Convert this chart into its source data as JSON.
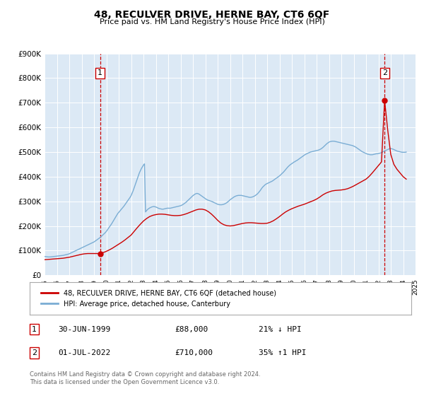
{
  "title": "48, RECULVER DRIVE, HERNE BAY, CT6 6QF",
  "subtitle": "Price paid vs. HM Land Registry's House Price Index (HPI)",
  "plot_bg_color": "#dce9f5",
  "red_line_color": "#cc0000",
  "blue_line_color": "#7aadd4",
  "ylim": [
    0,
    900000
  ],
  "yticks": [
    0,
    100000,
    200000,
    300000,
    400000,
    500000,
    600000,
    700000,
    800000,
    900000
  ],
  "ytick_labels": [
    "£0",
    "£100K",
    "£200K",
    "£300K",
    "£400K",
    "£500K",
    "£600K",
    "£700K",
    "£800K",
    "£900K"
  ],
  "point1": {
    "year": 1999.5,
    "price": 88000,
    "label": "1",
    "date": "30-JUN-1999",
    "amount": "£88,000",
    "pct": "21% ↓ HPI"
  },
  "point2": {
    "year": 2022.5,
    "price": 710000,
    "label": "2",
    "date": "01-JUL-2022",
    "amount": "£710,000",
    "pct": "35% ↑1 HPI"
  },
  "legend_label_red": "48, RECULVER DRIVE, HERNE BAY, CT6 6QF (detached house)",
  "legend_label_blue": "HPI: Average price, detached house, Canterbury",
  "footer": "Contains HM Land Registry data © Crown copyright and database right 2024.\nThis data is licensed under the Open Government Licence v3.0.",
  "hpi_data": {
    "years": [
      1995.0,
      1995.083,
      1995.167,
      1995.25,
      1995.333,
      1995.417,
      1995.5,
      1995.583,
      1995.667,
      1995.75,
      1995.833,
      1995.917,
      1996.0,
      1996.083,
      1996.167,
      1996.25,
      1996.333,
      1996.417,
      1996.5,
      1996.583,
      1996.667,
      1996.75,
      1996.833,
      1996.917,
      1997.0,
      1997.083,
      1997.167,
      1997.25,
      1997.333,
      1997.417,
      1997.5,
      1997.583,
      1997.667,
      1997.75,
      1997.833,
      1997.917,
      1998.0,
      1998.083,
      1998.167,
      1998.25,
      1998.333,
      1998.417,
      1998.5,
      1998.583,
      1998.667,
      1998.75,
      1998.833,
      1998.917,
      1999.0,
      1999.083,
      1999.167,
      1999.25,
      1999.333,
      1999.417,
      1999.5,
      1999.583,
      1999.667,
      1999.75,
      1999.833,
      1999.917,
      2000.0,
      2000.083,
      2000.167,
      2000.25,
      2000.333,
      2000.417,
      2000.5,
      2000.583,
      2000.667,
      2000.75,
      2000.833,
      2000.917,
      2001.0,
      2001.083,
      2001.167,
      2001.25,
      2001.333,
      2001.417,
      2001.5,
      2001.583,
      2001.667,
      2001.75,
      2001.833,
      2001.917,
      2002.0,
      2002.083,
      2002.167,
      2002.25,
      2002.333,
      2002.417,
      2002.5,
      2002.583,
      2002.667,
      2002.75,
      2002.833,
      2002.917,
      2003.0,
      2003.083,
      2003.167,
      2003.25,
      2003.333,
      2003.417,
      2003.5,
      2003.583,
      2003.667,
      2003.75,
      2003.833,
      2003.917,
      2004.0,
      2004.083,
      2004.167,
      2004.25,
      2004.333,
      2004.417,
      2004.5,
      2004.583,
      2004.667,
      2004.75,
      2004.833,
      2004.917,
      2005.0,
      2005.083,
      2005.167,
      2005.25,
      2005.333,
      2005.417,
      2005.5,
      2005.583,
      2005.667,
      2005.75,
      2005.833,
      2005.917,
      2006.0,
      2006.083,
      2006.167,
      2006.25,
      2006.333,
      2006.417,
      2006.5,
      2006.583,
      2006.667,
      2006.75,
      2006.833,
      2006.917,
      2007.0,
      2007.083,
      2007.167,
      2007.25,
      2007.333,
      2007.417,
      2007.5,
      2007.583,
      2007.667,
      2007.75,
      2007.833,
      2007.917,
      2008.0,
      2008.083,
      2008.167,
      2008.25,
      2008.333,
      2008.417,
      2008.5,
      2008.583,
      2008.667,
      2008.75,
      2008.833,
      2008.917,
      2009.0,
      2009.083,
      2009.167,
      2009.25,
      2009.333,
      2009.417,
      2009.5,
      2009.583,
      2009.667,
      2009.75,
      2009.833,
      2009.917,
      2010.0,
      2010.083,
      2010.167,
      2010.25,
      2010.333,
      2010.417,
      2010.5,
      2010.583,
      2010.667,
      2010.75,
      2010.833,
      2010.917,
      2011.0,
      2011.083,
      2011.167,
      2011.25,
      2011.333,
      2011.417,
      2011.5,
      2011.583,
      2011.667,
      2011.75,
      2011.833,
      2011.917,
      2012.0,
      2012.083,
      2012.167,
      2012.25,
      2012.333,
      2012.417,
      2012.5,
      2012.583,
      2012.667,
      2012.75,
      2012.833,
      2012.917,
      2013.0,
      2013.083,
      2013.167,
      2013.25,
      2013.333,
      2013.417,
      2013.5,
      2013.583,
      2013.667,
      2013.75,
      2013.833,
      2013.917,
      2014.0,
      2014.083,
      2014.167,
      2014.25,
      2014.333,
      2014.417,
      2014.5,
      2014.583,
      2014.667,
      2014.75,
      2014.833,
      2014.917,
      2015.0,
      2015.083,
      2015.167,
      2015.25,
      2015.333,
      2015.417,
      2015.5,
      2015.583,
      2015.667,
      2015.75,
      2015.833,
      2015.917,
      2016.0,
      2016.083,
      2016.167,
      2016.25,
      2016.333,
      2016.417,
      2016.5,
      2016.583,
      2016.667,
      2016.75,
      2016.833,
      2016.917,
      2017.0,
      2017.083,
      2017.167,
      2017.25,
      2017.333,
      2017.417,
      2017.5,
      2017.583,
      2017.667,
      2017.75,
      2017.833,
      2017.917,
      2018.0,
      2018.083,
      2018.167,
      2018.25,
      2018.333,
      2018.417,
      2018.5,
      2018.583,
      2018.667,
      2018.75,
      2018.833,
      2018.917,
      2019.0,
      2019.083,
      2019.167,
      2019.25,
      2019.333,
      2019.417,
      2019.5,
      2019.583,
      2019.667,
      2019.75,
      2019.833,
      2019.917,
      2020.0,
      2020.083,
      2020.167,
      2020.25,
      2020.333,
      2020.417,
      2020.5,
      2020.583,
      2020.667,
      2020.75,
      2020.833,
      2020.917,
      2021.0,
      2021.083,
      2021.167,
      2021.25,
      2021.333,
      2021.417,
      2021.5,
      2021.583,
      2021.667,
      2021.75,
      2021.833,
      2021.917,
      2022.0,
      2022.083,
      2022.167,
      2022.25,
      2022.333,
      2022.417,
      2022.5,
      2022.583,
      2022.667,
      2022.75,
      2022.833,
      2022.917,
      2023.0,
      2023.083,
      2023.167,
      2023.25,
      2023.333,
      2023.417,
      2023.5,
      2023.583,
      2023.667,
      2023.75,
      2023.833,
      2023.917,
      2024.0,
      2024.083,
      2024.167,
      2024.25
    ],
    "values": [
      76000,
      75500,
      75000,
      74500,
      74000,
      74200,
      74500,
      75000,
      75500,
      76000,
      76500,
      77000,
      77500,
      78000,
      78500,
      79000,
      79500,
      80000,
      80500,
      81500,
      82500,
      83500,
      84500,
      85500,
      87000,
      89000,
      91000,
      93000,
      95000,
      97000,
      99000,
      101000,
      103000,
      105000,
      107000,
      109000,
      111000,
      113000,
      115000,
      117000,
      119000,
      121000,
      123000,
      125000,
      127000,
      129000,
      131000,
      133000,
      135000,
      138000,
      141000,
      144000,
      147000,
      150000,
      153000,
      157000,
      161000,
      165000,
      169000,
      173000,
      178000,
      184000,
      190000,
      196000,
      202000,
      208000,
      215000,
      222000,
      229000,
      236000,
      243000,
      250000,
      255000,
      260000,
      265000,
      270000,
      275000,
      280000,
      286000,
      292000,
      298000,
      304000,
      310000,
      316000,
      323000,
      333000,
      343000,
      355000,
      367000,
      379000,
      391000,
      403000,
      415000,
      424000,
      433000,
      440000,
      447000,
      452000,
      257000,
      262000,
      267000,
      270000,
      273000,
      275000,
      277000,
      278000,
      279000,
      278000,
      277000,
      275000,
      273000,
      271000,
      270000,
      269000,
      268000,
      268000,
      269000,
      270000,
      271000,
      272000,
      272000,
      272000,
      272000,
      273000,
      274000,
      275000,
      276000,
      277000,
      278000,
      279000,
      280000,
      281000,
      282000,
      284000,
      286000,
      289000,
      292000,
      295000,
      299000,
      303000,
      307000,
      311000,
      315000,
      319000,
      323000,
      326000,
      329000,
      331000,
      332000,
      331000,
      329000,
      326000,
      323000,
      320000,
      317000,
      314000,
      311000,
      308000,
      306000,
      304000,
      303000,
      301000,
      300000,
      298000,
      296000,
      294000,
      292000,
      290000,
      288000,
      287000,
      286000,
      286000,
      286000,
      287000,
      288000,
      290000,
      292000,
      295000,
      298000,
      302000,
      306000,
      309000,
      312000,
      315000,
      318000,
      320000,
      322000,
      323000,
      324000,
      324000,
      324000,
      324000,
      323000,
      322000,
      321000,
      320000,
      319000,
      318000,
      317000,
      316000,
      316000,
      317000,
      318000,
      320000,
      322000,
      325000,
      328000,
      332000,
      337000,
      342000,
      348000,
      354000,
      359000,
      363000,
      367000,
      370000,
      372000,
      374000,
      376000,
      378000,
      380000,
      382000,
      385000,
      388000,
      391000,
      394000,
      397000,
      400000,
      403000,
      407000,
      411000,
      415000,
      419000,
      424000,
      429000,
      434000,
      439000,
      443000,
      447000,
      450000,
      453000,
      456000,
      459000,
      461000,
      464000,
      466000,
      469000,
      472000,
      475000,
      478000,
      481000,
      484000,
      487000,
      490000,
      492000,
      494000,
      496000,
      498000,
      500000,
      501000,
      502000,
      503000,
      504000,
      505000,
      506000,
      507000,
      508000,
      510000,
      512000,
      515000,
      518000,
      522000,
      526000,
      530000,
      534000,
      537000,
      540000,
      542000,
      543000,
      544000,
      544000,
      544000,
      543000,
      542000,
      541000,
      540000,
      539000,
      538000,
      537000,
      536000,
      535000,
      534000,
      533000,
      532000,
      531000,
      530000,
      529000,
      528000,
      527000,
      526000,
      524000,
      522000,
      520000,
      517000,
      514000,
      511000,
      508000,
      505000,
      502000,
      500000,
      498000,
      496000,
      494000,
      492000,
      491000,
      490000,
      489000,
      489000,
      489000,
      490000,
      491000,
      492000,
      493000,
      493000,
      494000,
      495000,
      496000,
      498000,
      500000,
      502000,
      504000,
      506000,
      508000,
      510000,
      512000,
      514000,
      514000,
      513000,
      512000,
      510000,
      508000,
      506000,
      504000,
      503000,
      502000,
      501000,
      500000,
      499000,
      499000,
      499000,
      499000,
      500000
    ]
  },
  "red_data": {
    "years": [
      1995.0,
      1995.25,
      1995.5,
      1995.75,
      1996.0,
      1996.25,
      1996.5,
      1996.75,
      1997.0,
      1997.25,
      1997.5,
      1997.75,
      1998.0,
      1998.25,
      1998.5,
      1998.75,
      1999.0,
      1999.25,
      1999.5,
      1999.75,
      2000.0,
      2000.25,
      2000.5,
      2000.75,
      2001.0,
      2001.25,
      2001.5,
      2001.75,
      2002.0,
      2002.25,
      2002.5,
      2002.75,
      2003.0,
      2003.25,
      2003.5,
      2003.75,
      2004.0,
      2004.25,
      2004.5,
      2004.75,
      2005.0,
      2005.25,
      2005.5,
      2005.75,
      2006.0,
      2006.25,
      2006.5,
      2006.75,
      2007.0,
      2007.25,
      2007.5,
      2007.75,
      2008.0,
      2008.25,
      2008.5,
      2008.75,
      2009.0,
      2009.25,
      2009.5,
      2009.75,
      2010.0,
      2010.25,
      2010.5,
      2010.75,
      2011.0,
      2011.25,
      2011.5,
      2011.75,
      2012.0,
      2012.25,
      2012.5,
      2012.75,
      2013.0,
      2013.25,
      2013.5,
      2013.75,
      2014.0,
      2014.25,
      2014.5,
      2014.75,
      2015.0,
      2015.25,
      2015.5,
      2015.75,
      2016.0,
      2016.25,
      2016.5,
      2016.75,
      2017.0,
      2017.25,
      2017.5,
      2017.75,
      2018.0,
      2018.25,
      2018.5,
      2018.75,
      2019.0,
      2019.25,
      2019.5,
      2019.75,
      2020.0,
      2020.25,
      2020.5,
      2020.75,
      2021.0,
      2021.25,
      2021.5,
      2021.75,
      2022.0,
      2022.25,
      2022.5,
      2022.75,
      2023.0,
      2023.25,
      2023.5,
      2023.75,
      2024.0,
      2024.25
    ],
    "values": [
      63000,
      64000,
      65000,
      66000,
      67000,
      68000,
      69000,
      71000,
      73000,
      76000,
      79000,
      82000,
      85000,
      87000,
      88000,
      88000,
      88000,
      88000,
      88000,
      92000,
      97000,
      103000,
      110000,
      118000,
      126000,
      134000,
      143000,
      153000,
      163000,
      178000,
      193000,
      207000,
      220000,
      230000,
      238000,
      243000,
      246000,
      248000,
      248000,
      247000,
      245000,
      243000,
      242000,
      242000,
      243000,
      246000,
      250000,
      255000,
      260000,
      265000,
      268000,
      268000,
      265000,
      258000,
      248000,
      236000,
      223000,
      212000,
      205000,
      201000,
      200000,
      201000,
      204000,
      207000,
      210000,
      212000,
      213000,
      213000,
      212000,
      211000,
      210000,
      210000,
      211000,
      215000,
      221000,
      229000,
      238000,
      248000,
      257000,
      264000,
      270000,
      275000,
      280000,
      284000,
      288000,
      293000,
      298000,
      303000,
      309000,
      317000,
      326000,
      333000,
      338000,
      342000,
      344000,
      345000,
      346000,
      348000,
      351000,
      356000,
      362000,
      369000,
      376000,
      383000,
      390000,
      401000,
      415000,
      430000,
      445000,
      460000,
      710000,
      590000,
      490000,
      450000,
      430000,
      415000,
      400000,
      390000
    ]
  }
}
